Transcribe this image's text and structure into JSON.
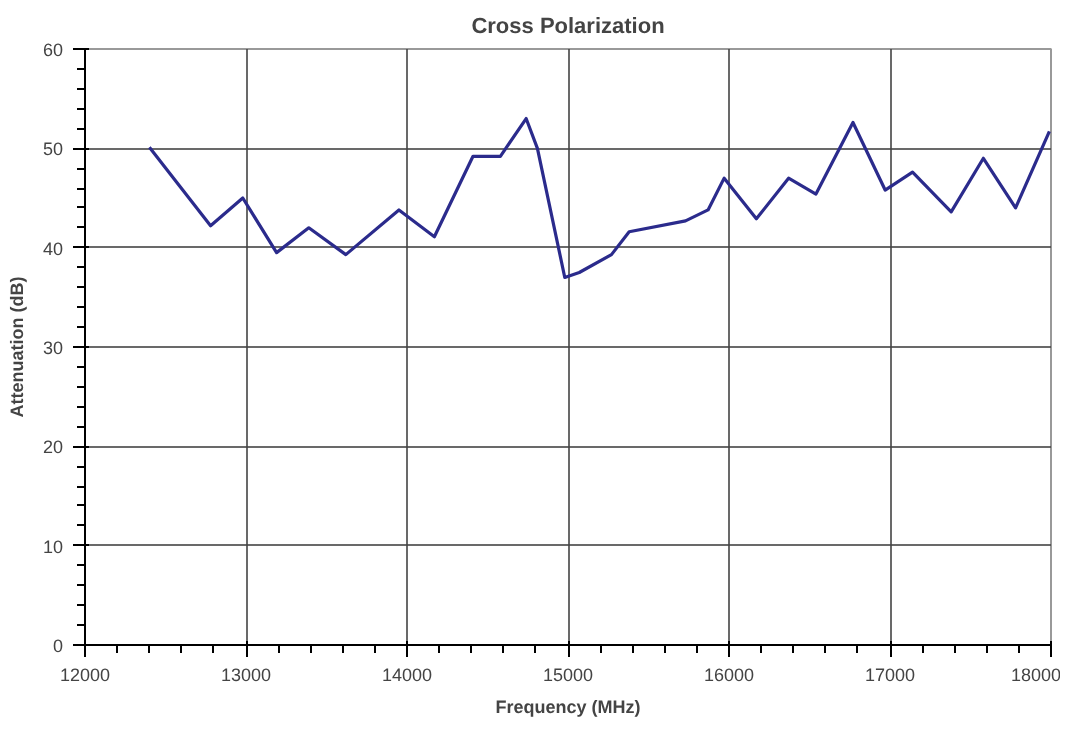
{
  "chart_data": {
    "type": "line",
    "title": "Cross Polarization",
    "xlabel": "Frequency (MHz)",
    "ylabel": "Attenuation (dB)",
    "x": [
      12400,
      12780,
      12980,
      13190,
      13390,
      13620,
      13950,
      14170,
      14410,
      14580,
      14740,
      14810,
      14980,
      15070,
      15270,
      15380,
      15730,
      15870,
      15970,
      16170,
      16370,
      16540,
      16770,
      16970,
      17140,
      17380,
      17580,
      17780,
      17990
    ],
    "series": [
      {
        "color": "#2b2b8c",
        "values": [
          50.1,
          42.2,
          45,
          39.5,
          42,
          39.3,
          43.8,
          41.1,
          49.2,
          49.2,
          53,
          50,
          37,
          37.5,
          39.3,
          41.6,
          42.7,
          43.8,
          47,
          42.9,
          47,
          45.4,
          52.6,
          45.8,
          47.6,
          43.6,
          49,
          44,
          51.7
        ]
      }
    ],
    "xlim": [
      12000,
      18000
    ],
    "xticks": [
      12000,
      13000,
      14000,
      15000,
      16000,
      17000,
      18000
    ],
    "ylim": [
      0,
      60
    ],
    "yticks": [
      0,
      10,
      20,
      30,
      40,
      50,
      60
    ],
    "grid": true,
    "marker": "none",
    "line_style": "solid"
  }
}
